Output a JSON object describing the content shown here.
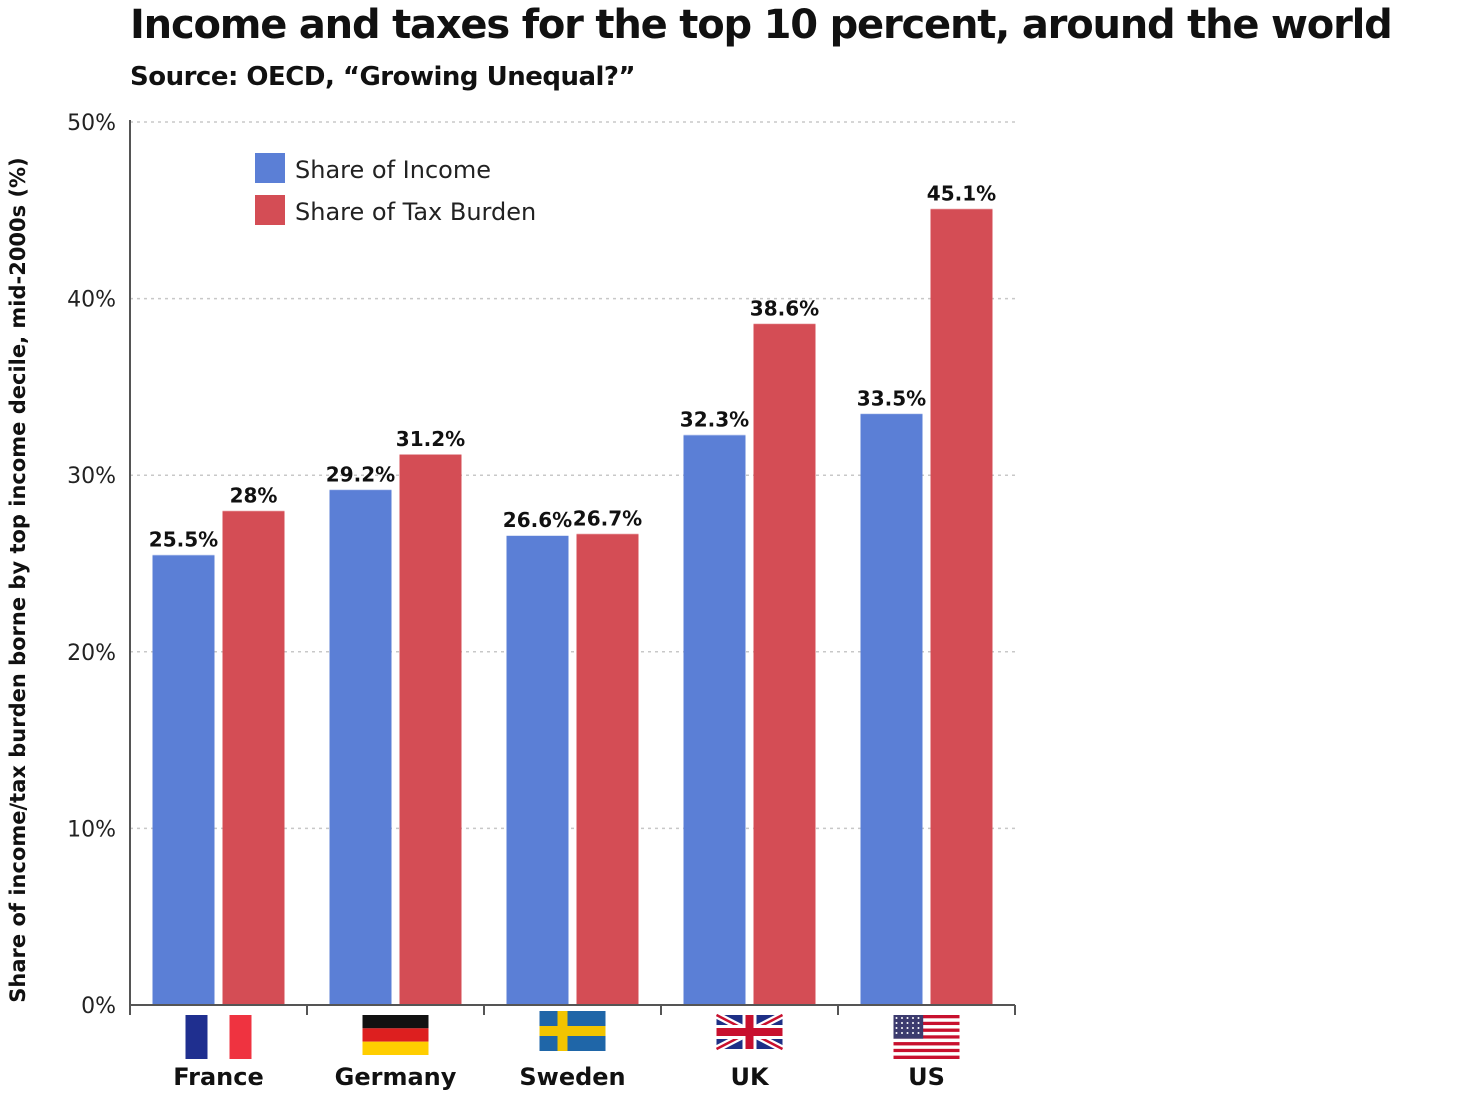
{
  "chart_data": {
    "type": "bar",
    "title": "Income and taxes for the top 10 percent, around the world",
    "subtitle": "Source: OECD, “Growing Unequal?”",
    "xlabel": "",
    "ylabel": "Share of income/tax burden borne by top income decile, mid-2000s (%)",
    "ylim": [
      0,
      50
    ],
    "yticks": [
      0,
      10,
      20,
      30,
      40,
      50
    ],
    "ytick_labels": [
      "0%",
      "10%",
      "20%",
      "30%",
      "40%",
      "50%"
    ],
    "grid": true,
    "legend_position": "top-left",
    "categories": [
      "France",
      "Germany",
      "Sweden",
      "UK",
      "US"
    ],
    "category_icons": [
      "france-flag-icon",
      "germany-flag-icon",
      "sweden-flag-icon",
      "uk-flag-icon",
      "us-flag-icon"
    ],
    "series": [
      {
        "name": "Share of Income",
        "color": "#5b7fd6",
        "values": [
          25.5,
          29.2,
          26.6,
          32.3,
          33.5
        ],
        "labels": [
          "25.5%",
          "29.2%",
          "26.6%",
          "32.3%",
          "33.5%"
        ]
      },
      {
        "name": "Share of Tax Burden",
        "color": "#d44d55",
        "values": [
          28,
          31.2,
          26.7,
          38.6,
          45.1
        ],
        "labels": [
          "28%",
          "31.2%",
          "26.7%",
          "38.6%",
          "45.1%"
        ]
      }
    ]
  }
}
